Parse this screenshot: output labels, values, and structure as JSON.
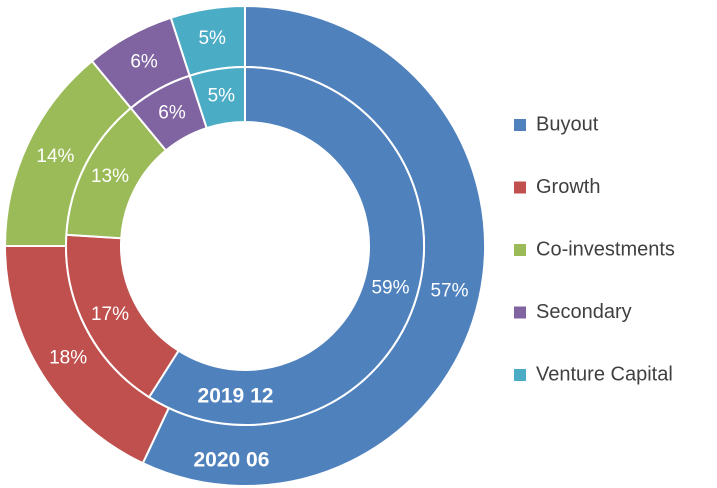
{
  "chart_data": {
    "type": "doughnut",
    "categories": [
      "Buyout",
      "Growth",
      "Co-investments",
      "Secondary",
      "Venture Capital"
    ],
    "colors": [
      "#4f81bd",
      "#c0504d",
      "#9bbb59",
      "#8064a2",
      "#4bacc6"
    ],
    "series": [
      {
        "name": "2020 06",
        "values": [
          57,
          18,
          14,
          6,
          5
        ],
        "value_labels": [
          "57%",
          "18%",
          "14%",
          "6%",
          "5%"
        ]
      },
      {
        "name": "2019 12",
        "values": [
          59,
          17,
          13,
          6,
          5
        ],
        "value_labels": [
          "59%",
          "17%",
          "13%",
          "6%",
          "5%"
        ]
      }
    ],
    "legend": "right"
  }
}
